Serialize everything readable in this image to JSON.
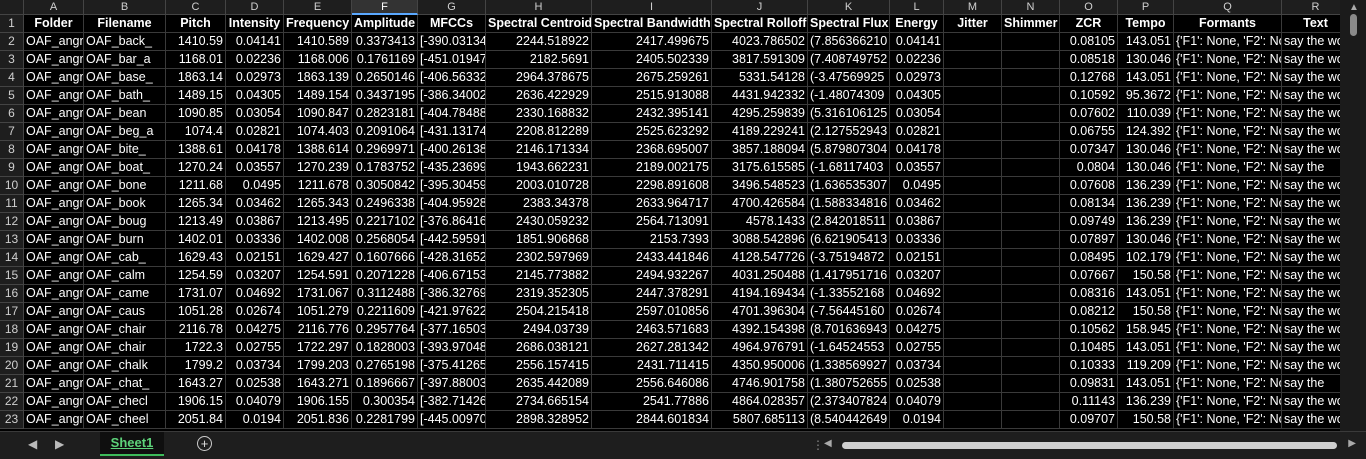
{
  "col_letters": [
    "A",
    "B",
    "C",
    "D",
    "E",
    "F",
    "G",
    "H",
    "I",
    "J",
    "K",
    "L",
    "M",
    "N",
    "O",
    "P",
    "Q",
    "R"
  ],
  "selected_col": "F",
  "rows": [
    [
      "1",
      "Folder",
      "Filename",
      "Pitch",
      "Intensity",
      "Frequency",
      "Amplitude",
      "MFCCs",
      "Spectral Centroid",
      "Spectral Bandwidth",
      "Spectral Rolloff",
      "Spectral Flux",
      "Energy",
      "Jitter",
      "Shimmer",
      "ZCR",
      "Tempo",
      "Formants",
      "Text"
    ],
    [
      "2",
      "OAF_angr",
      "OAF_back_",
      "1410.59",
      "0.04141",
      "1410.589",
      "0.3373413",
      "[-390.03134",
      "2244.518922",
      "2417.499675",
      "4023.786502",
      "(7.856366210",
      "0.04141",
      "",
      "",
      "0.08105",
      "143.051",
      "{'F1': None, 'F2': Nor",
      "say the word"
    ],
    [
      "3",
      "OAF_angr",
      "OAF_bar_a",
      "1168.01",
      "0.02236",
      "1168.006",
      "0.1761169",
      "[-451.01947",
      "2182.5691",
      "2405.502339",
      "3817.591309",
      "(7.408749752",
      "0.02236",
      "",
      "",
      "0.08518",
      "130.046",
      "{'F1': None, 'F2': Nor",
      "say the word"
    ],
    [
      "4",
      "OAF_angr",
      "OAF_base_",
      "1863.14",
      "0.02973",
      "1863.139",
      "0.2650146",
      "[-406.56332",
      "2964.378675",
      "2675.259261",
      "5331.54128",
      "(-3.47569925",
      "0.02973",
      "",
      "",
      "0.12768",
      "143.051",
      "{'F1': None, 'F2': Nor",
      "say the word"
    ],
    [
      "5",
      "OAF_angr",
      "OAF_bath_",
      "1489.15",
      "0.04305",
      "1489.154",
      "0.3437195",
      "[-386.34002",
      "2636.422929",
      "2515.913088",
      "4431.942332",
      "(-1.48074309",
      "0.04305",
      "",
      "",
      "0.10592",
      "95.3672",
      "{'F1': None, 'F2': Nor",
      "say the word"
    ],
    [
      "6",
      "OAF_angr",
      "OAF_bean",
      "1090.85",
      "0.03054",
      "1090.847",
      "0.2823181",
      "[-404.78488",
      "2330.168832",
      "2432.395141",
      "4295.259839",
      "(5.316106125",
      "0.03054",
      "",
      "",
      "0.07602",
      "110.039",
      "{'F1': None, 'F2': Nor",
      "say the word"
    ],
    [
      "7",
      "OAF_angr",
      "OAF_beg_a",
      "1074.4",
      "0.02821",
      "1074.403",
      "0.2091064",
      "[-431.13174",
      "2208.812289",
      "2525.623292",
      "4189.229241",
      "(2.127552943",
      "0.02821",
      "",
      "",
      "0.06755",
      "124.392",
      "{'F1': None, 'F2': Nor",
      "say the word"
    ],
    [
      "8",
      "OAF_angr",
      "OAF_bite_",
      "1388.61",
      "0.04178",
      "1388.614",
      "0.2969971",
      "[-400.26138",
      "2146.171334",
      "2368.695007",
      "3857.188094",
      "(5.879807304",
      "0.04178",
      "",
      "",
      "0.07347",
      "130.046",
      "{'F1': None, 'F2': Nor",
      "say the word"
    ],
    [
      "9",
      "OAF_angr",
      "OAF_boat_",
      "1270.24",
      "0.03557",
      "1270.239",
      "0.1783752",
      "[-435.23699",
      "1943.662231",
      "2189.002175",
      "3175.615585",
      "(-1.68117403",
      "0.03557",
      "",
      "",
      "0.0804",
      "130.046",
      "{'F1': None, 'F2': Nor",
      "say the"
    ],
    [
      "10",
      "OAF_angr",
      "OAF_bone",
      "1211.68",
      "0.0495",
      "1211.678",
      "0.3050842",
      "[-395.30459",
      "2003.010728",
      "2298.891608",
      "3496.548523",
      "(1.636535307",
      "0.0495",
      "",
      "",
      "0.07608",
      "136.239",
      "{'F1': None, 'F2': Nor",
      "say the word"
    ],
    [
      "11",
      "OAF_angr",
      "OAF_book",
      "1265.34",
      "0.03462",
      "1265.343",
      "0.2496338",
      "[-404.95928",
      "2383.34378",
      "2633.964717",
      "4700.426584",
      "(1.588334816",
      "0.03462",
      "",
      "",
      "0.08134",
      "136.239",
      "{'F1': None, 'F2': Nor",
      "say the word"
    ],
    [
      "12",
      "OAF_angr",
      "OAF_boug",
      "1213.49",
      "0.03867",
      "1213.495",
      "0.2217102",
      "[-376.86416",
      "2430.059232",
      "2564.713091",
      "4578.1433",
      "(2.842018511",
      "0.03867",
      "",
      "",
      "0.09749",
      "136.239",
      "{'F1': None, 'F2': Nor",
      "say the word"
    ],
    [
      "13",
      "OAF_angr",
      "OAF_burn",
      "1402.01",
      "0.03336",
      "1402.008",
      "0.2568054",
      "[-442.59591",
      "1851.906868",
      "2153.7393",
      "3088.542896",
      "(6.621905413",
      "0.03336",
      "",
      "",
      "0.07897",
      "130.046",
      "{'F1': None, 'F2': Nor",
      "say the word"
    ],
    [
      "14",
      "OAF_angr",
      "OAF_cab_",
      "1629.43",
      "0.02151",
      "1629.427",
      "0.1607666",
      "[-428.31652",
      "2302.597969",
      "2433.441846",
      "4128.547726",
      "(-3.75194872",
      "0.02151",
      "",
      "",
      "0.08495",
      "102.179",
      "{'F1': None, 'F2': Nor",
      "say the word"
    ],
    [
      "15",
      "OAF_angr",
      "OAF_calm",
      "1254.59",
      "0.03207",
      "1254.591",
      "0.2071228",
      "[-406.67153",
      "2145.773882",
      "2494.932267",
      "4031.250488",
      "(1.417951716",
      "0.03207",
      "",
      "",
      "0.07667",
      "150.58",
      "{'F1': None, 'F2': Nor",
      "say the word"
    ],
    [
      "16",
      "OAF_angr",
      "OAF_came",
      "1731.07",
      "0.04692",
      "1731.067",
      "0.3112488",
      "[-386.32769",
      "2319.352305",
      "2447.378291",
      "4194.169434",
      "(-1.33552168",
      "0.04692",
      "",
      "",
      "0.08316",
      "143.051",
      "{'F1': None, 'F2': Nor",
      "say the word"
    ],
    [
      "17",
      "OAF_angr",
      "OAF_caus",
      "1051.28",
      "0.02674",
      "1051.279",
      "0.2211609",
      "[-421.97622",
      "2504.215418",
      "2597.010856",
      "4701.396304",
      "(-7.56445160",
      "0.02674",
      "",
      "",
      "0.08212",
      "150.58",
      "{'F1': None, 'F2': Nor",
      "say the word"
    ],
    [
      "18",
      "OAF_angr",
      "OAF_chair",
      "2116.78",
      "0.04275",
      "2116.776",
      "0.2957764",
      "[-377.16503",
      "2494.03739",
      "2463.571683",
      "4392.154398",
      "(8.701636943",
      "0.04275",
      "",
      "",
      "0.10562",
      "158.945",
      "{'F1': None, 'F2': Nor",
      "say the word"
    ],
    [
      "19",
      "OAF_angr",
      "OAF_chair",
      "1722.3",
      "0.02755",
      "1722.297",
      "0.1828003",
      "[-393.97048",
      "2686.038121",
      "2627.281342",
      "4964.976791",
      "(-1.64524553",
      "0.02755",
      "",
      "",
      "0.10485",
      "143.051",
      "{'F1': None, 'F2': Nor",
      "say the word"
    ],
    [
      "20",
      "OAF_angr",
      "OAF_chalk",
      "1799.2",
      "0.03734",
      "1799.203",
      "0.2765198",
      "[-375.41265",
      "2556.157415",
      "2431.711415",
      "4350.950006",
      "(1.338569927",
      "0.03734",
      "",
      "",
      "0.10333",
      "119.209",
      "{'F1': None, 'F2': Nor",
      "say the word"
    ],
    [
      "21",
      "OAF_angr",
      "OAF_chat_",
      "1643.27",
      "0.02538",
      "1643.271",
      "0.1896667",
      "[-397.88003",
      "2635.442089",
      "2556.646086",
      "4746.901758",
      "(1.380752655",
      "0.02538",
      "",
      "",
      "0.09831",
      "143.051",
      "{'F1': None, 'F2': Nor",
      "say the"
    ],
    [
      "22",
      "OAF_angr",
      "OAF_checl",
      "1906.15",
      "0.04079",
      "1906.155",
      "0.300354",
      "[-382.71426",
      "2734.665154",
      "2541.77886",
      "4864.028357",
      "(2.373407824",
      "0.04079",
      "",
      "",
      "0.11143",
      "136.239",
      "{'F1': None, 'F2': Nor",
      "say the word"
    ],
    [
      "23",
      "OAF_angr",
      "OAF_cheel",
      "2051.84",
      "0.0194",
      "2051.836",
      "0.2281799",
      "[-445.00970",
      "2898.328952",
      "2844.601834",
      "5807.685113",
      "(8.540442649",
      "0.0194",
      "",
      "",
      "0.09707",
      "150.58",
      "{'F1': None, 'F2': Nor",
      "say the word"
    ]
  ],
  "sheet_tab": "Sheet1",
  "add_sheet_glyph": "+",
  "nav_prev_glyph": "◀",
  "nav_next_glyph": "▶"
}
